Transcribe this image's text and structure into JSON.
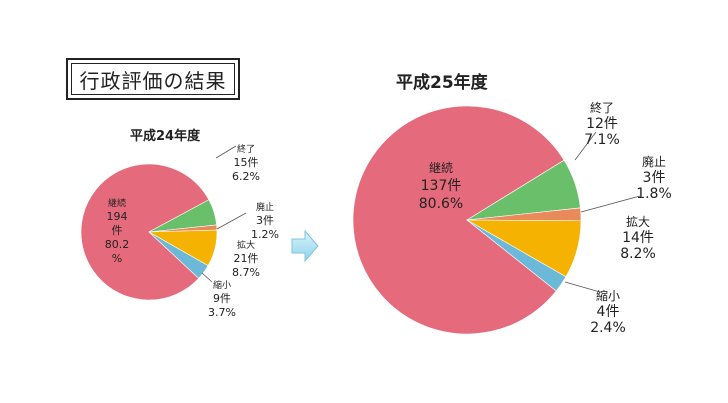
{
  "page_title": "行政評価の結果",
  "chart_data": [
    {
      "type": "pie",
      "title": "平成24年度",
      "slices": [
        {
          "name": "継続",
          "count_label": "194\n件",
          "count": 194,
          "percent": 80.2,
          "percent_label": "80.2\n%",
          "color": "#E56B7C"
        },
        {
          "name": "終了",
          "count_label": "15件",
          "count": 15,
          "percent": 6.2,
          "percent_label": "6.2%",
          "color": "#6ABF6A"
        },
        {
          "name": "廃止",
          "count_label": "3件",
          "count": 3,
          "percent": 1.2,
          "percent_label": "1.2%",
          "color": "#E88A5A"
        },
        {
          "name": "拡大",
          "count_label": "21件",
          "count": 21,
          "percent": 8.7,
          "percent_label": "8.7%",
          "color": "#F5B200"
        },
        {
          "name": "縮小",
          "count_label": "9件",
          "count": 9,
          "percent": 3.7,
          "percent_label": "3.7%",
          "color": "#6BB8D8"
        }
      ]
    },
    {
      "type": "pie",
      "title": "平成25年度",
      "slices": [
        {
          "name": "継続",
          "count_label": "137件",
          "count": 137,
          "percent": 80.6,
          "percent_label": "80.6%",
          "color": "#E56B7C"
        },
        {
          "name": "終了",
          "count_label": "12件",
          "count": 12,
          "percent": 7.1,
          "percent_label": "7.1%",
          "color": "#6ABF6A"
        },
        {
          "name": "廃止",
          "count_label": "3件",
          "count": 3,
          "percent": 1.8,
          "percent_label": "1.8%",
          "color": "#E88A5A"
        },
        {
          "name": "拡大",
          "count_label": "14件",
          "count": 14,
          "percent": 8.2,
          "percent_label": "8.2%",
          "color": "#F5B200"
        },
        {
          "name": "縮小",
          "count_label": "4件",
          "count": 4,
          "percent": 2.4,
          "percent_label": "2.4%",
          "color": "#6BB8D8"
        }
      ]
    }
  ],
  "arrow_icon": "right-arrow-icon"
}
